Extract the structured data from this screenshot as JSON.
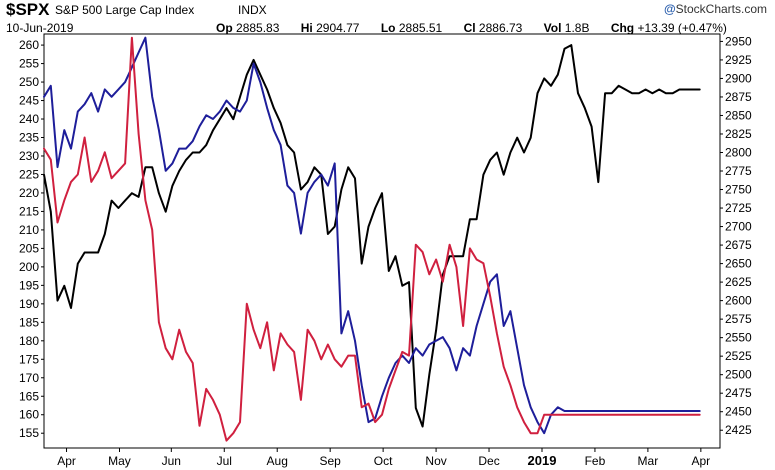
{
  "header": {
    "symbol": "$SPX",
    "name": "S&P 500 Large Cap Index",
    "exchange": "INDX",
    "date": "10-Jun-2019",
    "open_label": "Op",
    "open_value": "2885.83",
    "high_label": "Hi",
    "high_value": "2904.77",
    "low_label": "Lo",
    "low_value": "2885.51",
    "close_label": "Cl",
    "close_value": "2886.73",
    "volume_label": "Vol",
    "volume_value": "1.8B",
    "change_label": "Chg",
    "change_value": "+13.39 (+0.47%)",
    "brand": "StockCharts.com",
    "brand_mark": "@"
  },
  "chart_data": {
    "type": "line",
    "xlim": [
      0,
      30
    ],
    "left_axis": {
      "ylim": [
        151,
        263
      ],
      "ticks": [
        155,
        160,
        165,
        170,
        175,
        180,
        185,
        190,
        195,
        200,
        205,
        210,
        215,
        220,
        225,
        230,
        235,
        240,
        245,
        250,
        255,
        260
      ]
    },
    "right_axis": {
      "ylim": [
        2401,
        2960
      ],
      "ticks": [
        2425,
        2450,
        2475,
        2500,
        2525,
        2550,
        2575,
        2600,
        2625,
        2650,
        2675,
        2700,
        2725,
        2750,
        2775,
        2800,
        2825,
        2850,
        2875,
        2900,
        2925,
        2950
      ]
    },
    "x_ticks": [
      {
        "label": "Apr",
        "x": 1.0
      },
      {
        "label": "May",
        "x": 3.35
      },
      {
        "label": "Jun",
        "x": 5.65
      },
      {
        "label": "Jul",
        "x": 8.0
      },
      {
        "label": "Aug",
        "x": 10.35
      },
      {
        "label": "Sep",
        "x": 12.7
      },
      {
        "label": "Oct",
        "x": 15.05
      },
      {
        "label": "Nov",
        "x": 17.4
      },
      {
        "label": "Dec",
        "x": 19.75
      },
      {
        "label": "2019",
        "x": 22.1,
        "bold": true
      },
      {
        "label": "Feb",
        "x": 24.45
      },
      {
        "label": "Mar",
        "x": 26.8
      },
      {
        "label": "Apr",
        "x": 29.15
      }
    ],
    "series": [
      {
        "color": "#000000",
        "axis": "right",
        "x": [
          0,
          0.3,
          0.6,
          0.9,
          1.2,
          1.5,
          1.8,
          2.1,
          2.4,
          2.7,
          3.0,
          3.3,
          3.6,
          3.9,
          4.2,
          4.5,
          4.8,
          5.1,
          5.4,
          5.7,
          6.0,
          6.3,
          6.6,
          6.9,
          7.2,
          7.5,
          7.8,
          8.1,
          8.4,
          8.7,
          9.0,
          9.3,
          9.6,
          9.9,
          10.2,
          10.5,
          10.8,
          11.1,
          11.4,
          11.7,
          12.0,
          12.3,
          12.6,
          12.9,
          13.2,
          13.5,
          13.8,
          14.1,
          14.4,
          14.7,
          15.0,
          15.3,
          15.6,
          15.9,
          16.2,
          16.5,
          16.8,
          17.1,
          17.4,
          17.7,
          18.0,
          18.3,
          18.6,
          18.9,
          19.2,
          19.5,
          19.8,
          20.1,
          20.4,
          20.7,
          21.0,
          21.3,
          21.6,
          21.9,
          22.2,
          22.5,
          22.8,
          23.1,
          23.4,
          23.7,
          24.0,
          24.3,
          24.6,
          24.9,
          25.2,
          25.5,
          25.8,
          26.1,
          26.4,
          26.7,
          27.0,
          27.3,
          27.6,
          27.9,
          28.2,
          28.5,
          28.8,
          29.1
        ],
        "y": [
          2770,
          2720,
          2600,
          2620,
          2590,
          2650,
          2665,
          2665,
          2665,
          2690,
          2735,
          2725,
          2735,
          2745,
          2740,
          2780,
          2780,
          2745,
          2720,
          2755,
          2775,
          2790,
          2800,
          2800,
          2810,
          2830,
          2845,
          2860,
          2845,
          2875,
          2905,
          2925,
          2905,
          2885,
          2860,
          2840,
          2810,
          2800,
          2750,
          2760,
          2780,
          2770,
          2690,
          2700,
          2750,
          2780,
          2765,
          2650,
          2700,
          2725,
          2745,
          2640,
          2660,
          2620,
          2625,
          2455,
          2430,
          2500,
          2560,
          2635,
          2660,
          2660,
          2660,
          2710,
          2710,
          2770,
          2790,
          2800,
          2770,
          2800,
          2820,
          2800,
          2820,
          2880,
          2900,
          2890,
          2905,
          2940,
          2945,
          2880,
          2860,
          2835,
          2760,
          2880,
          2880,
          2890,
          2885,
          2880,
          2880,
          2885,
          2880,
          2885,
          2880,
          2880,
          2885,
          2885,
          2885,
          2885
        ]
      },
      {
        "color": "#1e1e9a",
        "axis": "left",
        "x": [
          0,
          0.3,
          0.6,
          0.9,
          1.2,
          1.5,
          1.8,
          2.1,
          2.4,
          2.7,
          3.0,
          3.3,
          3.6,
          3.9,
          4.2,
          4.5,
          4.8,
          5.1,
          5.4,
          5.7,
          6.0,
          6.3,
          6.6,
          6.9,
          7.2,
          7.5,
          7.8,
          8.1,
          8.4,
          8.7,
          9.0,
          9.3,
          9.6,
          9.9,
          10.2,
          10.5,
          10.8,
          11.1,
          11.4,
          11.7,
          12.0,
          12.3,
          12.6,
          12.9,
          13.2,
          13.5,
          13.8,
          14.1,
          14.4,
          14.7,
          15.0,
          15.3,
          15.6,
          15.9,
          16.2,
          16.5,
          16.8,
          17.1,
          17.4,
          17.7,
          18.0,
          18.3,
          18.6,
          18.9,
          19.2,
          19.5,
          19.8,
          20.1,
          20.4,
          20.7,
          21.0,
          21.3,
          21.6,
          21.9,
          22.2,
          22.5,
          22.8,
          23.1,
          23.4,
          23.7,
          24.0,
          24.3,
          24.6,
          24.9,
          25.2,
          25.5,
          25.8,
          26.1,
          26.4,
          26.7,
          27.0,
          27.3,
          27.6,
          27.9,
          28.2,
          28.5,
          28.8,
          29.1
        ],
        "y": [
          246,
          249,
          227,
          237,
          232,
          242,
          244,
          247,
          242,
          248,
          246,
          248,
          250,
          254,
          258,
          262,
          246,
          237,
          226,
          228,
          232,
          232,
          234,
          238,
          241,
          240,
          242,
          245,
          243,
          242,
          245,
          255,
          250,
          243,
          237,
          233,
          222,
          220,
          209,
          220,
          223,
          225,
          222,
          228,
          182,
          188,
          180,
          168,
          158,
          159,
          165,
          170,
          174,
          176,
          174,
          178,
          176,
          179,
          180,
          181,
          178,
          172,
          178,
          176,
          184,
          190,
          196,
          198,
          184,
          188,
          178,
          168,
          162,
          158,
          155,
          160,
          162,
          161,
          161,
          161,
          161,
          161,
          161,
          161,
          161,
          161,
          161,
          161,
          161,
          161,
          161,
          161,
          161,
          161,
          161,
          161,
          161,
          161
        ]
      },
      {
        "color": "#d0203f",
        "axis": "left",
        "x": [
          0,
          0.3,
          0.6,
          0.9,
          1.2,
          1.5,
          1.8,
          2.1,
          2.4,
          2.7,
          3.0,
          3.3,
          3.6,
          3.9,
          4.2,
          4.5,
          4.8,
          5.1,
          5.4,
          5.7,
          6.0,
          6.3,
          6.6,
          6.9,
          7.2,
          7.5,
          7.8,
          8.1,
          8.4,
          8.7,
          9.0,
          9.3,
          9.6,
          9.9,
          10.2,
          10.5,
          10.8,
          11.1,
          11.4,
          11.7,
          12.0,
          12.3,
          12.6,
          12.9,
          13.2,
          13.5,
          13.8,
          14.1,
          14.4,
          14.7,
          15.0,
          15.3,
          15.6,
          15.9,
          16.2,
          16.5,
          16.8,
          17.1,
          17.4,
          17.7,
          18.0,
          18.3,
          18.6,
          18.9,
          19.2,
          19.5,
          19.8,
          20.1,
          20.4,
          20.7,
          21.0,
          21.3,
          21.6,
          21.9,
          22.2,
          22.5,
          22.8,
          23.1,
          23.4,
          23.7,
          24.0,
          24.3,
          24.6,
          24.9,
          25.2,
          25.5,
          25.8,
          26.1,
          26.4,
          26.7,
          27.0,
          27.3,
          27.6,
          27.9,
          28.2,
          28.5,
          28.8,
          29.1
        ],
        "y": [
          232,
          229,
          212,
          218,
          223,
          225,
          235,
          223,
          226,
          231,
          224,
          226,
          228,
          262,
          236,
          218,
          210,
          185,
          178,
          175,
          183,
          177,
          174,
          157,
          167,
          164,
          160,
          153,
          155,
          158,
          190,
          183,
          178,
          185,
          172,
          182,
          179,
          177,
          164,
          183,
          180,
          175,
          179,
          175,
          173,
          176,
          176,
          162,
          163,
          158,
          160,
          167,
          172,
          177,
          176,
          206,
          204,
          198,
          202,
          196,
          206,
          200,
          184,
          205,
          202,
          201,
          192,
          182,
          173,
          168,
          162,
          158,
          155,
          155,
          160,
          160,
          160,
          160,
          160,
          160,
          160,
          160,
          160,
          160,
          160,
          160,
          160,
          160,
          160,
          160,
          160,
          160,
          160,
          160,
          160,
          160,
          160,
          160
        ]
      }
    ]
  }
}
